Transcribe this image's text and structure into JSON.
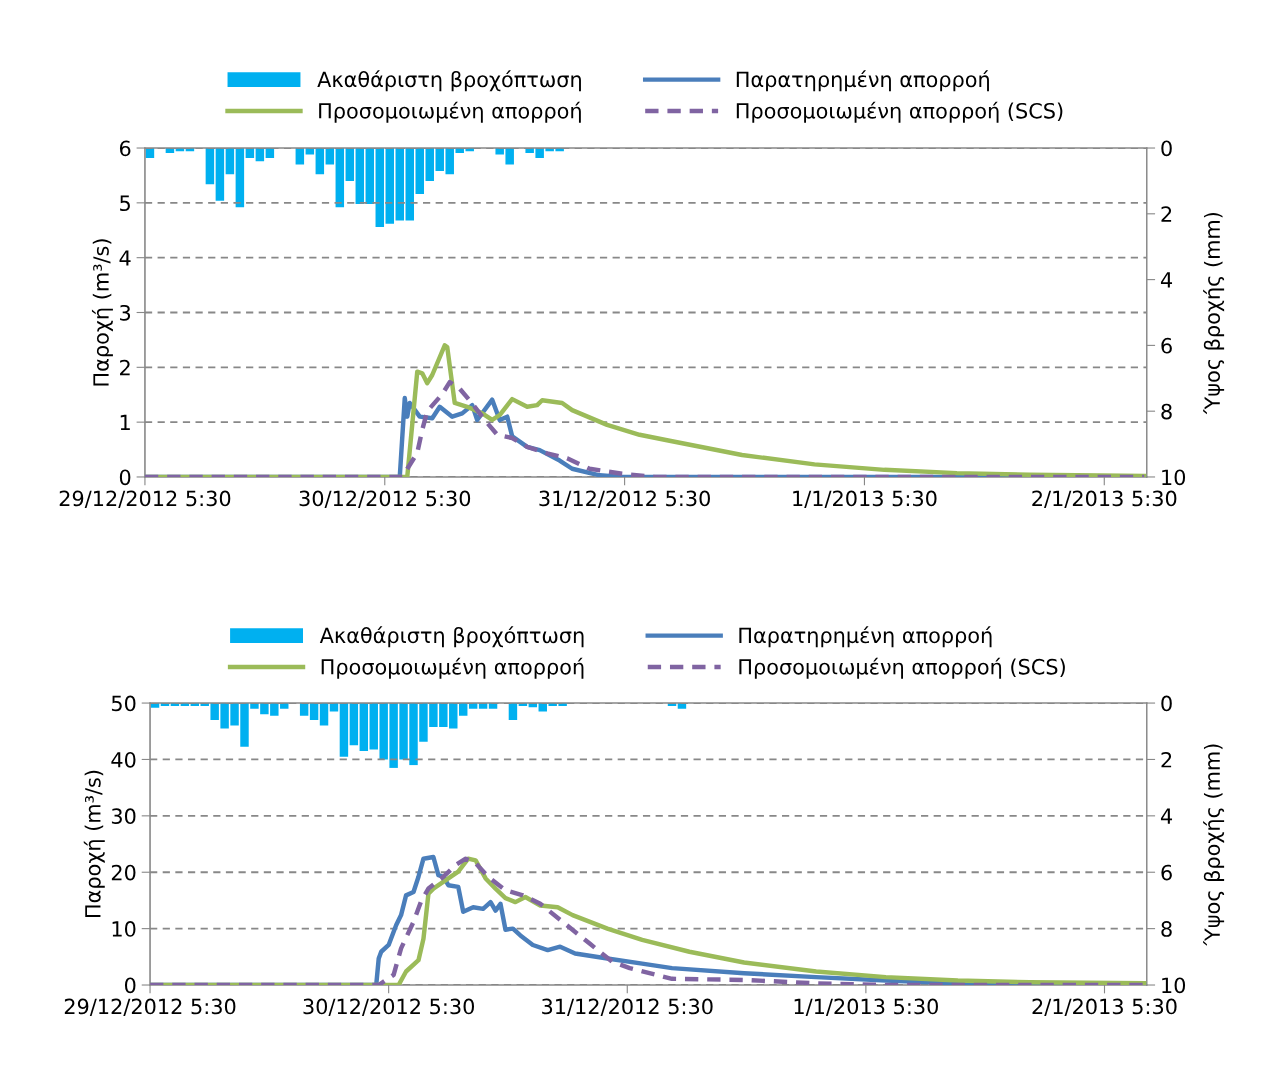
{
  "chart_data": [
    {
      "type": "line",
      "ylabel": "Παροχή (m³/s)",
      "y2label": "Ύψος βροχής (mm)",
      "ylim": [
        0,
        6
      ],
      "yticks": [
        0,
        1,
        2,
        3,
        4,
        5,
        6
      ],
      "y2lim": [
        10,
        0
      ],
      "y2ticks": [
        0,
        2,
        4,
        6,
        8,
        10
      ],
      "xlim": [
        "2012-12-29T05:30",
        "2013-01-02T09:45"
      ],
      "xticks": [
        {
          "value": "2012-12-29T05:30",
          "label": "29/12/2012 5:30"
        },
        {
          "value": "2012-12-30T05:30",
          "label": "30/12/2012 5:30"
        },
        {
          "value": "2012-12-31T05:30",
          "label": "31/12/2012 5:30"
        },
        {
          "value": "2013-01-01T05:30",
          "label": "1/1/2013 5:30"
        },
        {
          "value": "2013-01-02T05:30",
          "label": "2/1/2013 5:30"
        }
      ],
      "grid": "y",
      "legend": "top",
      "series": [
        {
          "name": "Ακαθάριστη βροχόπτωση",
          "type": "bar",
          "axis": "y2",
          "color": "#00b0f0",
          "x": [
            "2012-12-29T06:00",
            "2012-12-29T07:00",
            "2012-12-29T08:00",
            "2012-12-29T09:00",
            "2012-12-29T10:00",
            "2012-12-29T11:00",
            "2012-12-29T12:00",
            "2012-12-29T13:00",
            "2012-12-29T14:00",
            "2012-12-29T15:00",
            "2012-12-29T16:00",
            "2012-12-29T17:00",
            "2012-12-29T18:00",
            "2012-12-29T19:00",
            "2012-12-29T20:00",
            "2012-12-29T21:00",
            "2012-12-29T22:00",
            "2012-12-29T23:00",
            "2012-12-30T00:00",
            "2012-12-30T01:00",
            "2012-12-30T02:00",
            "2012-12-30T03:00",
            "2012-12-30T04:00",
            "2012-12-30T05:00",
            "2012-12-30T06:00",
            "2012-12-30T07:00",
            "2012-12-30T08:00",
            "2012-12-30T09:00",
            "2012-12-30T10:00",
            "2012-12-30T11:00",
            "2012-12-30T12:00",
            "2012-12-30T13:00",
            "2012-12-30T14:00",
            "2012-12-30T15:00",
            "2012-12-30T16:00",
            "2012-12-30T17:00",
            "2012-12-30T18:00",
            "2012-12-30T19:00",
            "2012-12-30T20:00",
            "2012-12-30T21:00",
            "2012-12-30T22:00",
            "2012-12-30T23:00"
          ],
          "values": [
            0.3,
            0,
            0.15,
            0.1,
            0.1,
            0,
            1.1,
            1.6,
            0.8,
            1.8,
            0.3,
            0.4,
            0.3,
            0,
            0,
            0.5,
            0.2,
            0.8,
            0.5,
            1.8,
            1.0,
            1.7,
            1.7,
            2.4,
            2.3,
            2.2,
            2.2,
            1.4,
            1.0,
            0.7,
            0.8,
            0.15,
            0.1,
            0,
            0,
            0.2,
            0.5,
            0,
            0.15,
            0.3,
            0.1,
            0.1
          ]
        },
        {
          "name": "Παρατηρημένη απορροή",
          "color": "#4a7ebb",
          "line_style": "solid",
          "x": [
            "2012-12-29T05:30",
            "2012-12-30T07:00",
            "2012-12-30T07:30",
            "2012-12-30T07:45",
            "2012-12-30T08:00",
            "2012-12-30T09:00",
            "2012-12-30T10:15",
            "2012-12-30T11:00",
            "2012-12-30T12:15",
            "2012-12-30T13:15",
            "2012-12-30T14:15",
            "2012-12-30T14:45",
            "2012-12-30T16:15",
            "2012-12-30T17:00",
            "2012-12-30T17:45",
            "2012-12-30T18:15",
            "2012-12-30T19:45",
            "2012-12-30T21:00",
            "2012-12-30T23:00",
            "2012-12-31T00:15",
            "2012-12-31T03:00",
            "2012-12-31T05:15",
            "2013-01-02T09:30"
          ],
          "values": [
            0,
            0,
            1.44,
            1.1,
            1.35,
            1.1,
            1.07,
            1.28,
            1.1,
            1.16,
            1.31,
            1.04,
            1.41,
            1.04,
            1.1,
            0.74,
            0.55,
            0.49,
            0.3,
            0.15,
            0.03,
            0,
            0
          ]
        },
        {
          "name": "Προσομοιωμένη απορροή",
          "color": "#9bbb59",
          "line_style": "solid",
          "x": [
            "2012-12-29T05:30",
            "2012-12-30T07:45",
            "2012-12-30T08:45",
            "2012-12-30T09:15",
            "2012-12-30T09:45",
            "2012-12-30T10:15",
            "2012-12-30T11:30",
            "2012-12-30T11:45",
            "2012-12-30T12:30",
            "2012-12-30T13:45",
            "2012-12-30T15:15",
            "2012-12-30T16:15",
            "2012-12-30T17:00",
            "2012-12-30T18:15",
            "2012-12-30T19:45",
            "2012-12-30T20:45",
            "2012-12-30T21:15",
            "2012-12-30T23:15",
            "2012-12-31T00:15",
            "2012-12-31T03:45",
            "2012-12-31T07:00",
            "2012-12-31T10:00",
            "2012-12-31T17:15",
            "2013-01-01T00:30",
            "2013-01-01T07:30",
            "2013-01-01T14:45",
            "2013-01-01T22:00",
            "2013-01-02T09:30"
          ],
          "values": [
            0,
            0,
            1.92,
            1.89,
            1.71,
            1.86,
            2.4,
            2.37,
            1.35,
            1.28,
            1.16,
            1.04,
            1.13,
            1.42,
            1.28,
            1.31,
            1.4,
            1.35,
            1.22,
            0.95,
            0.77,
            0.66,
            0.4,
            0.23,
            0.13,
            0.07,
            0.04,
            0.02
          ]
        },
        {
          "name": "Προσομοιωμένη απορροή (SCS)",
          "color": "#8064a2",
          "line_style": "dashed",
          "x": [
            "2012-12-29T05:30",
            "2012-12-30T07:15",
            "2012-12-30T08:45",
            "2012-12-30T09:15",
            "2012-12-30T09:45",
            "2012-12-30T11:15",
            "2012-12-30T12:00",
            "2012-12-30T13:00",
            "2012-12-30T14:15",
            "2012-12-30T15:30",
            "2012-12-30T16:45",
            "2012-12-30T18:15",
            "2012-12-30T19:45",
            "2012-12-30T21:45",
            "2012-12-30T23:45",
            "2012-12-31T02:00",
            "2012-12-31T05:15",
            "2012-12-31T08:30",
            "2013-01-02T09:30"
          ],
          "values": [
            0,
            0,
            0.44,
            0.86,
            1.2,
            1.51,
            1.73,
            1.61,
            1.34,
            1.04,
            0.77,
            0.71,
            0.55,
            0.43,
            0.34,
            0.15,
            0.06,
            0,
            0
          ]
        }
      ]
    },
    {
      "type": "line",
      "ylabel": "Παροχή (m³/s)",
      "y2label": "Ύψος βροχής (mm)",
      "ylim": [
        0,
        50
      ],
      "yticks": [
        0,
        10,
        20,
        30,
        40,
        50
      ],
      "y2lim": [
        10,
        0
      ],
      "y2ticks": [
        0,
        2,
        4,
        6,
        8,
        10
      ],
      "xlim": [
        "2012-12-29T05:30",
        "2013-01-02T09:45"
      ],
      "xticks": [
        {
          "value": "2012-12-29T05:30",
          "label": "29/12/2012 5:30"
        },
        {
          "value": "2012-12-30T05:30",
          "label": "30/12/2012 5:30"
        },
        {
          "value": "2012-12-31T05:30",
          "label": "31/12/2012 5:30"
        },
        {
          "value": "2013-01-01T05:30",
          "label": "1/1/2013 5:30"
        },
        {
          "value": "2013-01-02T05:30",
          "label": "2/1/2013 5:30"
        }
      ],
      "grid": "y",
      "legend": "top",
      "series": [
        {
          "name": "Ακαθάριστη βροχόπτωση",
          "type": "bar",
          "axis": "y2",
          "color": "#00b0f0",
          "x": [
            "2012-12-29T06:00",
            "2012-12-29T07:00",
            "2012-12-29T08:00",
            "2012-12-29T09:00",
            "2012-12-29T10:00",
            "2012-12-29T11:00",
            "2012-12-29T12:00",
            "2012-12-29T13:00",
            "2012-12-29T14:00",
            "2012-12-29T15:00",
            "2012-12-29T16:00",
            "2012-12-29T17:00",
            "2012-12-29T18:00",
            "2012-12-29T19:00",
            "2012-12-29T20:00",
            "2012-12-29T21:00",
            "2012-12-29T22:00",
            "2012-12-29T23:00",
            "2012-12-30T00:00",
            "2012-12-30T01:00",
            "2012-12-30T02:00",
            "2012-12-30T03:00",
            "2012-12-30T04:00",
            "2012-12-30T05:00",
            "2012-12-30T06:00",
            "2012-12-30T07:00",
            "2012-12-30T08:00",
            "2012-12-30T09:00",
            "2012-12-30T10:00",
            "2012-12-30T11:00",
            "2012-12-30T12:00",
            "2012-12-30T13:00",
            "2012-12-30T14:00",
            "2012-12-30T15:00",
            "2012-12-30T16:00",
            "2012-12-30T17:00",
            "2012-12-30T18:00",
            "2012-12-30T19:00",
            "2012-12-30T20:00",
            "2012-12-30T21:00",
            "2012-12-30T22:00",
            "2012-12-30T23:00",
            "2012-12-31T10:00",
            "2012-12-31T11:00"
          ],
          "values": [
            0.17,
            0.1,
            0.1,
            0.1,
            0.1,
            0.1,
            0.6,
            0.9,
            0.8,
            1.55,
            0.2,
            0.4,
            0.45,
            0.2,
            0,
            0.45,
            0.6,
            0.8,
            0.3,
            1.9,
            1.5,
            1.7,
            1.65,
            2.0,
            2.3,
            2.0,
            2.2,
            1.37,
            0.85,
            0.85,
            0.9,
            0.45,
            0.2,
            0.2,
            0.2,
            0,
            0.6,
            0.1,
            0.15,
            0.3,
            0.1,
            0.1,
            0.1,
            0.2
          ]
        },
        {
          "name": "Παρατηρημένη απορροή",
          "color": "#4a7ebb",
          "line_style": "solid",
          "x": [
            "2012-12-29T05:30",
            "2012-12-30T04:15",
            "2012-12-30T04:30",
            "2012-12-30T04:45",
            "2012-12-30T05:30",
            "2012-12-30T06:15",
            "2012-12-30T06:45",
            "2012-12-30T07:15",
            "2012-12-30T08:00",
            "2012-12-30T08:30",
            "2012-12-30T09:00",
            "2012-12-30T10:00",
            "2012-12-30T10:30",
            "2012-12-30T11:00",
            "2012-12-30T11:30",
            "2012-12-30T12:30",
            "2012-12-30T13:00",
            "2012-12-30T14:00",
            "2012-12-30T15:00",
            "2012-12-30T15:45",
            "2012-12-30T16:15",
            "2012-12-30T16:45",
            "2012-12-30T17:15",
            "2012-12-30T18:00",
            "2012-12-30T18:45",
            "2012-12-30T20:00",
            "2012-12-30T21:30",
            "2012-12-30T22:45",
            "2012-12-31T00:15",
            "2012-12-31T03:30",
            "2012-12-31T07:00",
            "2012-12-31T10:00",
            "2012-12-31T17:15",
            "2013-01-01T00:30",
            "2013-01-01T07:30",
            "2013-01-01T14:45",
            "2013-01-01T22:00",
            "2013-01-02T09:30"
          ],
          "values": [
            0,
            0,
            4.7,
            5.9,
            7.1,
            10.6,
            12.4,
            15.9,
            16.5,
            19.2,
            22.4,
            22.7,
            19.5,
            19.2,
            17.7,
            17.4,
            13,
            13.8,
            13.5,
            14.7,
            13.2,
            14.4,
            9.8,
            10,
            8.8,
            7.1,
            6.2,
            6.8,
            5.6,
            4.7,
            3.8,
            3.0,
            2.1,
            1.4,
            0.8,
            0.3,
            0.2,
            0.1
          ]
        },
        {
          "name": "Προσομοιωμένη απορροή",
          "color": "#9bbb59",
          "line_style": "solid",
          "x": [
            "2012-12-29T05:30",
            "2012-12-30T06:30",
            "2012-12-30T07:15",
            "2012-12-30T08:30",
            "2012-12-30T09:00",
            "2012-12-30T09:30",
            "2012-12-30T10:00",
            "2012-12-30T11:30",
            "2012-12-30T12:30",
            "2012-12-30T13:30",
            "2012-12-30T14:15",
            "2012-12-30T15:15",
            "2012-12-30T16:15",
            "2012-12-30T17:15",
            "2012-12-30T18:15",
            "2012-12-30T19:15",
            "2012-12-30T20:45",
            "2012-12-30T22:30",
            "2012-12-31T00:00",
            "2012-12-31T03:30",
            "2012-12-31T07:00",
            "2012-12-31T11:45",
            "2012-12-31T17:15",
            "2013-01-01T00:30",
            "2013-01-01T07:30",
            "2013-01-01T14:45",
            "2013-01-01T22:00",
            "2013-01-02T09:30"
          ],
          "values": [
            0,
            0,
            2.4,
            4.4,
            8.2,
            16.2,
            17.1,
            18.9,
            20.1,
            22.4,
            22.1,
            18.9,
            17.1,
            15.4,
            14.7,
            15.6,
            14.1,
            13.8,
            12.4,
            10,
            8.0,
            5.9,
            4.0,
            2.4,
            1.4,
            0.8,
            0.5,
            0.3
          ]
        },
        {
          "name": "Προσομοιωμένη απορροή (SCS)",
          "color": "#8064a2",
          "line_style": "dashed",
          "x": [
            "2012-12-29T05:30",
            "2012-12-30T04:30",
            "2012-12-30T06:00",
            "2012-12-30T06:45",
            "2012-12-30T08:00",
            "2012-12-30T08:45",
            "2012-12-30T09:30",
            "2012-12-30T11:00",
            "2012-12-30T12:15",
            "2012-12-30T13:15",
            "2012-12-30T14:15",
            "2012-12-30T15:30",
            "2012-12-30T17:15",
            "2012-12-30T19:00",
            "2012-12-30T20:45",
            "2012-12-30T23:00",
            "2012-12-31T01:45",
            "2012-12-31T04:00",
            "2012-12-31T05:45",
            "2012-12-31T10:00",
            "2012-12-31T17:15",
            "2013-01-01T00:30",
            "2013-01-01T07:30",
            "2013-01-02T09:30"
          ],
          "values": [
            0,
            0,
            1.8,
            6.5,
            11.2,
            14.8,
            17.1,
            19.2,
            21.3,
            22.4,
            21.6,
            19.2,
            16.8,
            15.9,
            14.4,
            11.2,
            7.3,
            4.1,
            3.0,
            1.1,
            0.9,
            0.3,
            0,
            0
          ]
        }
      ]
    }
  ]
}
